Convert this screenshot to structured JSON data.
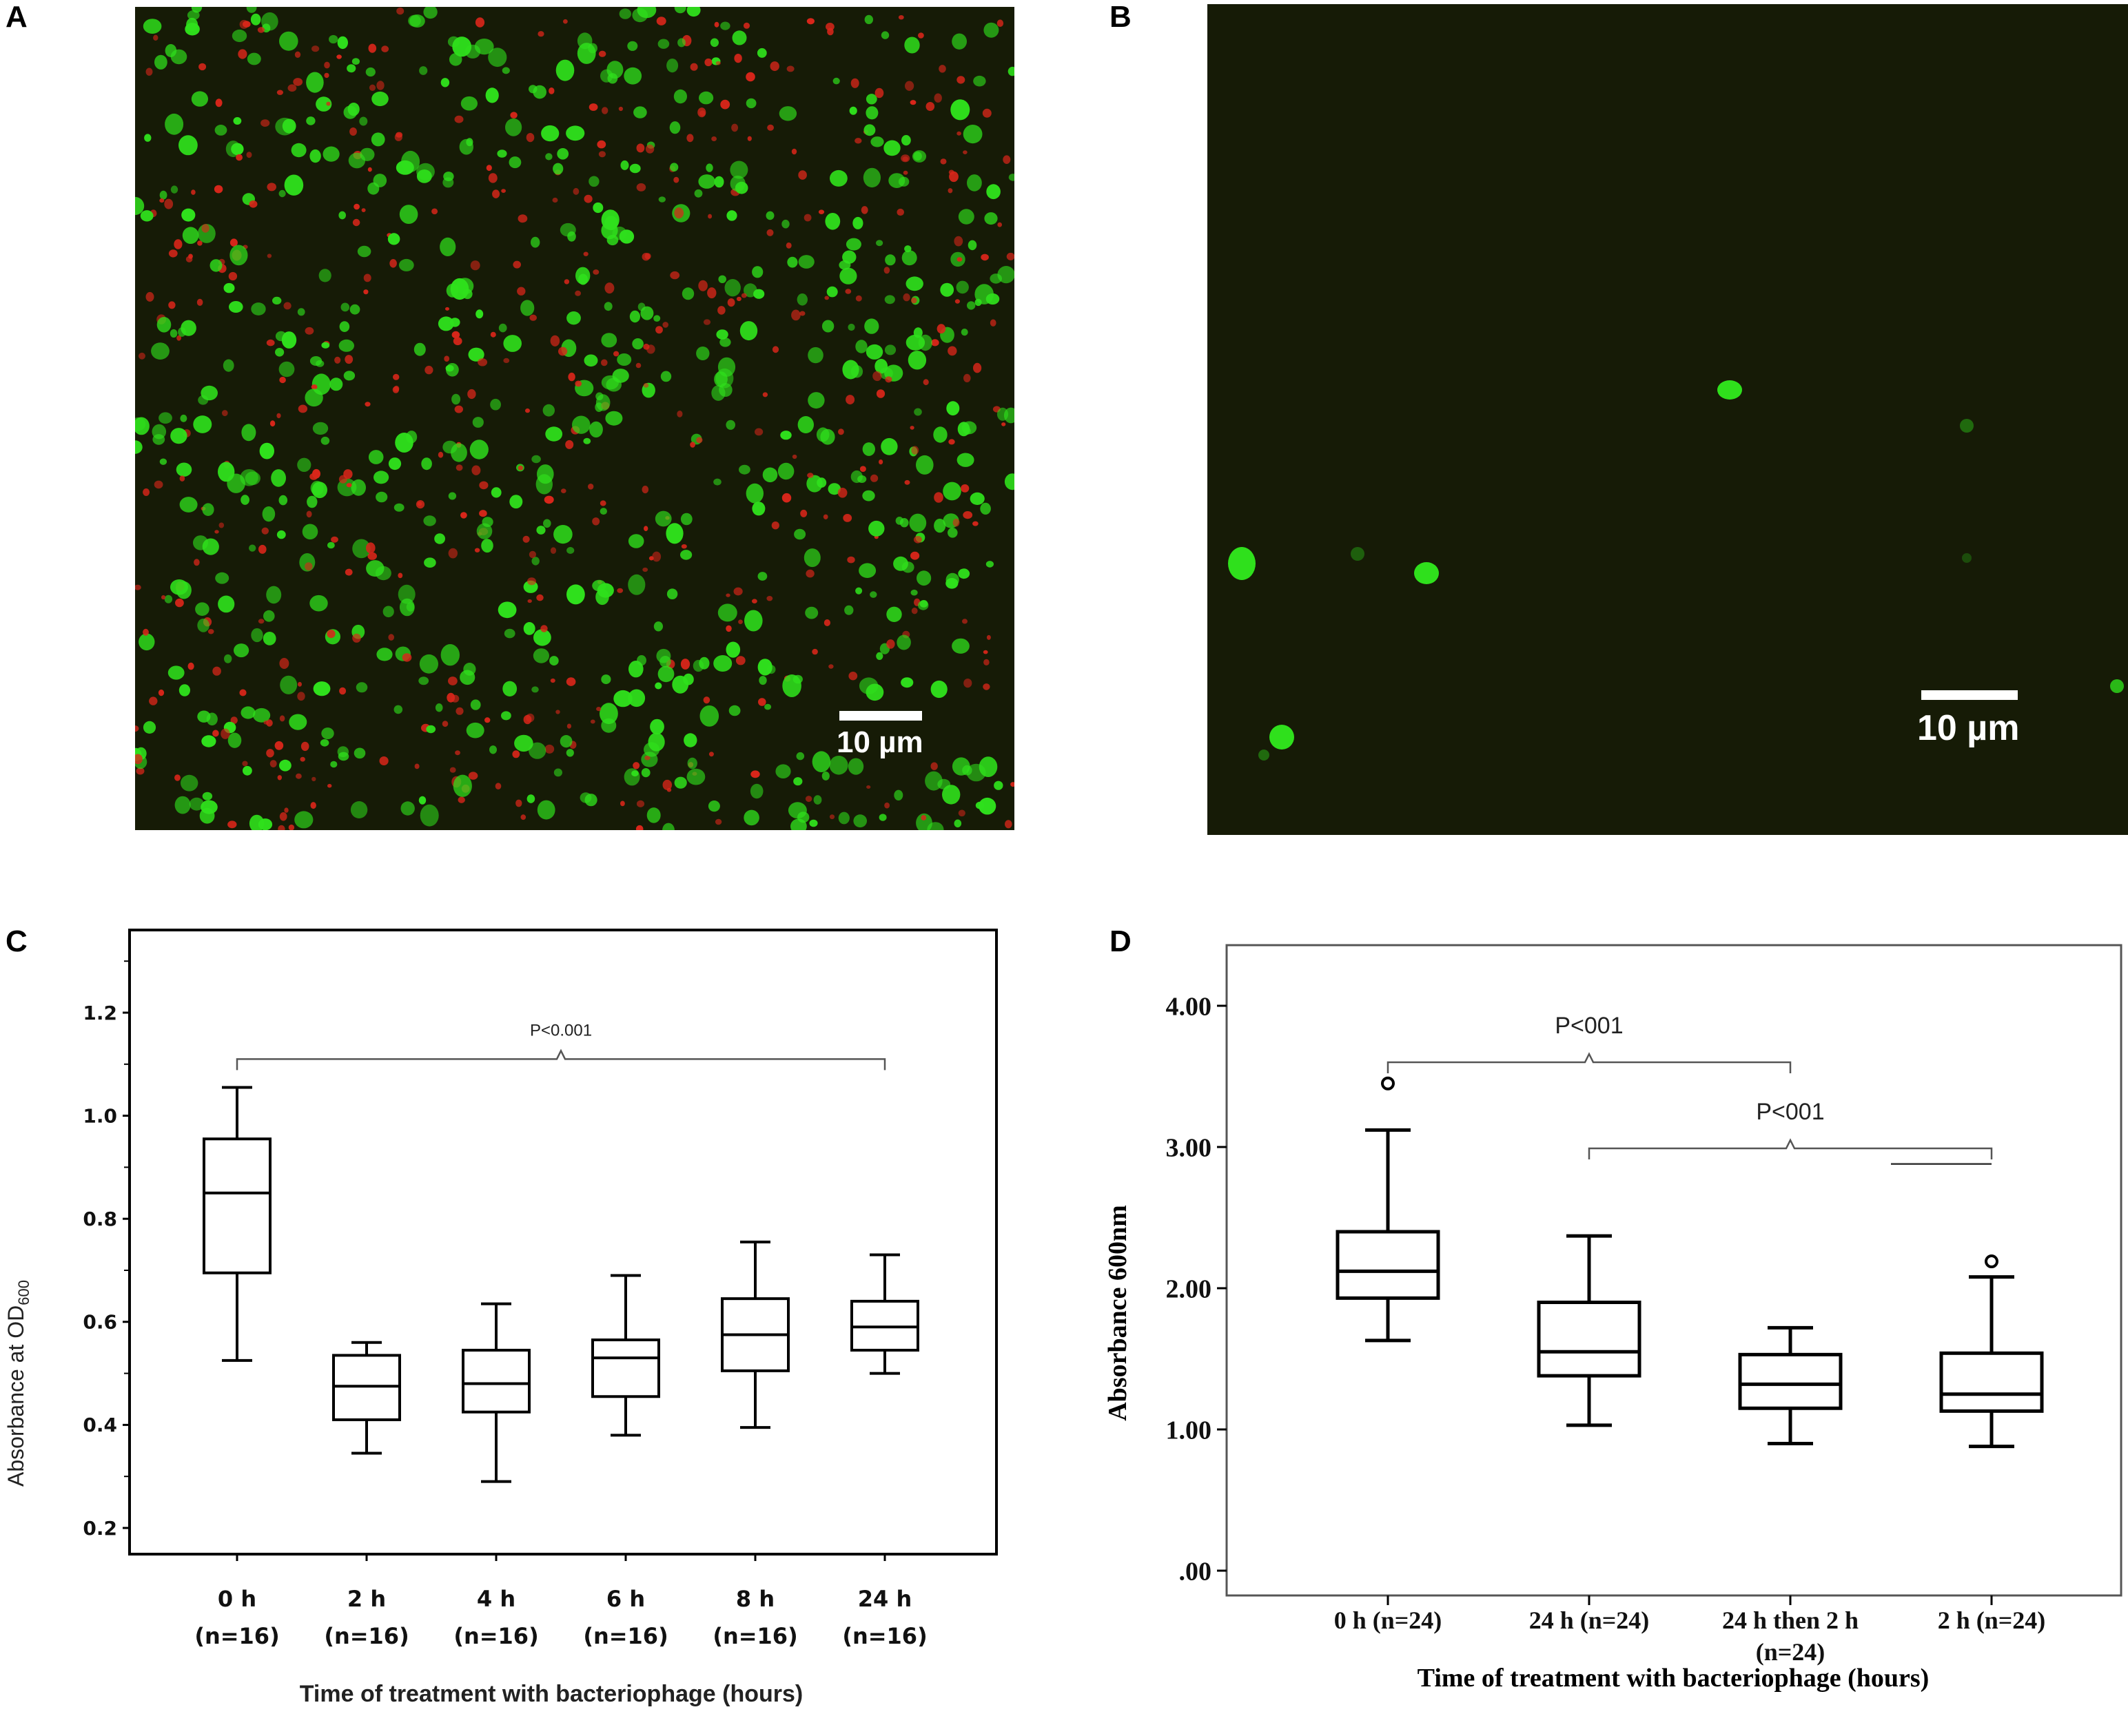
{
  "panels": {
    "a": {
      "letter": "A",
      "scale_bar_label": "10 µm",
      "colors": {
        "background": "#161b06",
        "live_cell": "#2fe01c",
        "dead_cell": "#d8261a"
      }
    },
    "b": {
      "letter": "B",
      "scale_bar_label": "10 µm",
      "colors": {
        "background": "#161b06",
        "live_cell": "#2fe01c"
      }
    },
    "c": {
      "letter": "C"
    },
    "d": {
      "letter": "D"
    }
  },
  "chart_data": [
    {
      "type": "boxplot",
      "panel": "C",
      "title": "",
      "xlabel": "Time of treatment with bacteriophage (hours)",
      "ylabel": "Absorbance at OD600",
      "ylabel_main": "Absorbance at OD",
      "ylabel_sub": "600",
      "ylim": [
        0.17,
        1.34
      ],
      "yticks": [
        "0.2",
        "0.4",
        "0.6",
        "0.8",
        "1.0",
        "1.2"
      ],
      "minor_yticks": [
        0.3,
        0.5,
        0.7,
        0.9,
        1.1,
        1.3
      ],
      "grid": false,
      "legend": "none",
      "categories": [
        {
          "line1": "0 h",
          "line2": "(n=16)"
        },
        {
          "line1": "2 h",
          "line2": "(n=16)"
        },
        {
          "line1": "4 h",
          "line2": "(n=16)"
        },
        {
          "line1": "6 h",
          "line2": "(n=16)"
        },
        {
          "line1": "8 h",
          "line2": "(n=16)"
        },
        {
          "line1": "24 h",
          "line2": "(n=16)"
        }
      ],
      "boxes": [
        {
          "min": 0.525,
          "q1": 0.695,
          "median": 0.85,
          "q3": 0.955,
          "max": 1.055,
          "outliers": []
        },
        {
          "min": 0.345,
          "q1": 0.41,
          "median": 0.475,
          "q3": 0.535,
          "max": 0.56,
          "outliers": []
        },
        {
          "min": 0.29,
          "q1": 0.425,
          "median": 0.48,
          "q3": 0.545,
          "max": 0.635,
          "outliers": []
        },
        {
          "min": 0.38,
          "q1": 0.455,
          "median": 0.53,
          "q3": 0.565,
          "max": 0.69,
          "outliers": []
        },
        {
          "min": 0.395,
          "q1": 0.505,
          "median": 0.575,
          "q3": 0.645,
          "max": 0.755,
          "outliers": []
        },
        {
          "min": 0.5,
          "q1": 0.545,
          "median": 0.59,
          "q3": 0.64,
          "max": 0.73,
          "outliers": []
        }
      ],
      "annotations": [
        {
          "text": "P<0.001",
          "from": 0,
          "to": 5,
          "y": 1.11
        }
      ]
    },
    {
      "type": "boxplot",
      "panel": "D",
      "title": "",
      "xlabel": "Time of treatment with bacteriophage (hours)",
      "ylabel": "Absorbance 600nm",
      "ylim": [
        0,
        4.4
      ],
      "yticks": [
        ".00",
        "1.00",
        "2.00",
        "3.00",
        "4.00"
      ],
      "ytick_values": [
        0,
        1,
        2,
        3,
        4
      ],
      "grid": false,
      "legend": "none",
      "categories": [
        {
          "line1": "0 h (n=24)",
          "line2": ""
        },
        {
          "line1": "24 h (n=24)",
          "line2": ""
        },
        {
          "line1": "24 h then 2 h",
          "line2": "(n=24)"
        },
        {
          "line1": "2 h (n=24)",
          "line2": ""
        }
      ],
      "boxes": [
        {
          "min": 1.63,
          "q1": 1.93,
          "median": 2.12,
          "q3": 2.4,
          "max": 3.12,
          "outliers": [
            3.45
          ]
        },
        {
          "min": 1.03,
          "q1": 1.38,
          "median": 1.55,
          "q3": 1.9,
          "max": 2.37,
          "outliers": []
        },
        {
          "min": 0.9,
          "q1": 1.15,
          "median": 1.32,
          "q3": 1.53,
          "max": 1.72,
          "outliers": []
        },
        {
          "min": 0.88,
          "q1": 1.13,
          "median": 1.25,
          "q3": 1.54,
          "max": 2.08,
          "outliers": [
            2.19
          ]
        }
      ],
      "annotations": [
        {
          "text": "P<001",
          "from": 0,
          "to": 2,
          "y": 3.6
        },
        {
          "text": "P<001",
          "from": 1,
          "to": 3,
          "y": 2.99
        }
      ],
      "extra_line": {
        "from": 2.5,
        "to": 3,
        "y": 2.88
      }
    }
  ]
}
